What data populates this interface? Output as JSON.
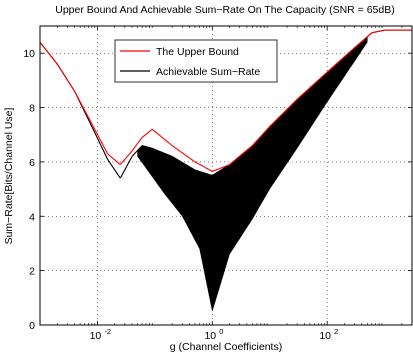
{
  "chart_data": {
    "type": "line",
    "title": "Upper Bound And Achievable Sum−Rate On The Capacity (SNR = 65dB)",
    "xlabel": "g (Channel Coefficients)",
    "ylabel": "Sum−Rate[Bits/Channel Use]",
    "xscale": "log",
    "xlim": [
      0.001,
      3000
    ],
    "ylim": [
      0,
      11
    ],
    "xticks": [
      0.01,
      1,
      100
    ],
    "xtick_labels": [
      "10",
      "10",
      "10"
    ],
    "xtick_exponents": [
      "-2",
      "0",
      "2"
    ],
    "yticks": [
      0,
      2,
      4,
      6,
      8,
      10
    ],
    "ytick_labels": [
      "0",
      "2",
      "4",
      "6",
      "8",
      "10"
    ],
    "grid": true,
    "legend_position": "top-center",
    "series": [
      {
        "name": "The Upper Bound",
        "color": "#ff0000",
        "style": "line",
        "x": [
          0.001,
          0.002,
          0.004,
          0.008,
          0.015,
          0.025,
          0.04,
          0.06,
          0.09,
          0.2,
          0.5,
          1.0,
          2.0,
          5.0,
          10,
          30,
          100,
          300,
          600,
          1000,
          3000
        ],
        "y": [
          10.4,
          9.6,
          8.6,
          7.4,
          6.3,
          5.9,
          6.4,
          6.9,
          7.2,
          6.6,
          6.0,
          5.65,
          5.9,
          6.6,
          7.3,
          8.3,
          9.3,
          10.2,
          10.75,
          10.85,
          10.85
        ]
      },
      {
        "name": "Achievable Sum−Rate",
        "color": "#000000",
        "style": "line",
        "x": [
          0.001,
          0.002,
          0.004,
          0.008,
          0.015,
          0.025,
          0.04,
          0.06,
          0.09,
          0.2,
          0.5,
          1.0,
          2.0,
          5.0,
          10,
          30,
          100,
          300,
          600,
          1000,
          3000
        ],
        "y": [
          10.4,
          9.6,
          8.6,
          7.3,
          6.1,
          5.4,
          6.2,
          6.6,
          6.5,
          6.2,
          5.7,
          5.5,
          5.9,
          6.6,
          7.3,
          8.3,
          9.3,
          10.2,
          10.75,
          10.85,
          10.85
        ]
      },
      {
        "name": "",
        "color": "#000000",
        "style": "oscillation-lower-envelope",
        "x": [
          0.05,
          0.08,
          0.15,
          0.3,
          0.6,
          1.0,
          2.0,
          5.0,
          10,
          30,
          100,
          300,
          500
        ],
        "y": [
          6.2,
          5.6,
          4.8,
          4.0,
          2.8,
          0.5,
          2.6,
          3.9,
          5.0,
          6.5,
          8.2,
          9.7,
          10.4
        ]
      }
    ]
  }
}
